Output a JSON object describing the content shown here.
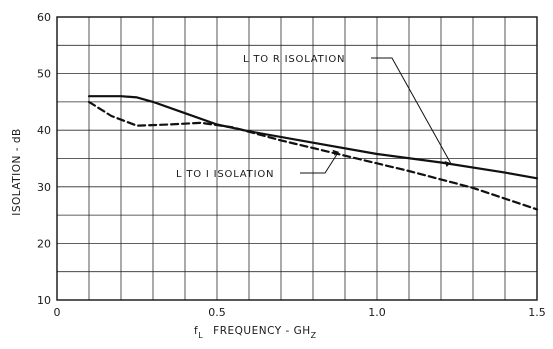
{
  "chart_data": {
    "type": "line",
    "xlim": [
      0,
      1.5
    ],
    "ylim": [
      10,
      60
    ],
    "x_ticks": [
      "0",
      "0.5",
      "1.0",
      "1.5"
    ],
    "y_ticks": [
      "10",
      "20",
      "30",
      "40",
      "50",
      "60"
    ],
    "ylabel": "ISOLATION - dB",
    "xlabel_main": "f",
    "xlabel_sub": "L",
    "xlabel_text": "FREQUENCY - GH",
    "xlabel_unit_sub": "Z",
    "grid": true,
    "series": [
      {
        "name": "L TO R ISOLATION",
        "style": "solid",
        "points": [
          [
            0.1,
            46
          ],
          [
            0.2,
            46
          ],
          [
            0.25,
            45.8
          ],
          [
            0.3,
            45
          ],
          [
            0.4,
            43
          ],
          [
            0.5,
            41
          ],
          [
            0.6,
            39.8
          ],
          [
            0.8,
            37.8
          ],
          [
            1.0,
            35.8
          ],
          [
            1.2,
            34.3
          ],
          [
            1.4,
            32.5
          ],
          [
            1.5,
            31.5
          ]
        ]
      },
      {
        "name": "L TO I ISOLATION",
        "style": "dashed",
        "points": [
          [
            0.1,
            45
          ],
          [
            0.17,
            42.5
          ],
          [
            0.25,
            40.8
          ],
          [
            0.35,
            41
          ],
          [
            0.45,
            41.3
          ],
          [
            0.55,
            40.5
          ],
          [
            0.7,
            38.2
          ],
          [
            0.9,
            35.5
          ],
          [
            1.1,
            32.8
          ],
          [
            1.3,
            29.8
          ],
          [
            1.5,
            26
          ]
        ]
      }
    ],
    "annotations": [
      {
        "text": "L TO R ISOLATION",
        "series": 0,
        "anchor_x": 1.23,
        "anchor_y": 34.2
      },
      {
        "text": "L TO I ISOLATION",
        "series": 1,
        "anchor_x": 0.88,
        "anchor_y": 36.2
      }
    ]
  }
}
